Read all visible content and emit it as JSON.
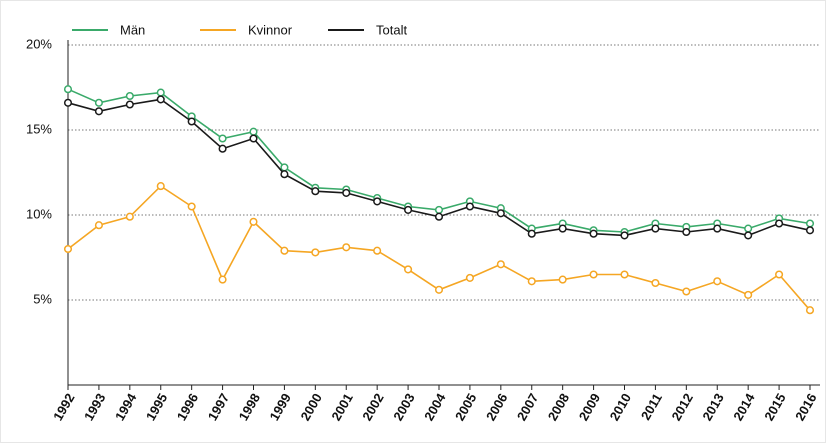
{
  "chart_data": {
    "type": "line",
    "categories": [
      "1992",
      "1993",
      "1994",
      "1995",
      "1996",
      "1997",
      "1998",
      "1999",
      "2000",
      "2001",
      "2002",
      "2003",
      "2004",
      "2005",
      "2006",
      "2007",
      "2008",
      "2009",
      "2010",
      "2011",
      "2012",
      "2013",
      "2014",
      "2015",
      "2016"
    ],
    "series": [
      {
        "name": "Män",
        "color": "#3aaa6a",
        "values": [
          17.4,
          16.6,
          17.0,
          17.2,
          15.8,
          14.5,
          14.9,
          12.8,
          11.6,
          11.5,
          11.0,
          10.5,
          10.3,
          10.8,
          10.4,
          9.2,
          9.5,
          9.1,
          9.0,
          9.5,
          9.3,
          9.5,
          9.2,
          9.8,
          9.5
        ]
      },
      {
        "name": "Kvinnor",
        "color": "#f5a623",
        "values": [
          8.0,
          9.4,
          9.9,
          11.7,
          10.5,
          6.2,
          9.6,
          7.9,
          7.8,
          8.1,
          7.9,
          6.8,
          5.6,
          6.3,
          7.1,
          6.1,
          6.2,
          6.5,
          6.5,
          6.0,
          5.5,
          6.1,
          5.3,
          6.5,
          4.4
        ]
      },
      {
        "name": "Totalt",
        "color": "#1a1a1a",
        "values": [
          16.6,
          16.1,
          16.5,
          16.8,
          15.5,
          13.9,
          14.5,
          12.4,
          11.4,
          11.3,
          10.8,
          10.3,
          9.9,
          10.5,
          10.1,
          8.9,
          9.2,
          8.9,
          8.8,
          9.2,
          9.0,
          9.2,
          8.8,
          9.5,
          9.1
        ]
      }
    ],
    "ylim": [
      0,
      20
    ],
    "yticks": [
      {
        "value": 5,
        "label": "5%"
      },
      {
        "value": 10,
        "label": "10%"
      },
      {
        "value": 15,
        "label": "15%"
      },
      {
        "value": 20,
        "label": "20%"
      }
    ],
    "grid": true,
    "legend": "top-left"
  }
}
